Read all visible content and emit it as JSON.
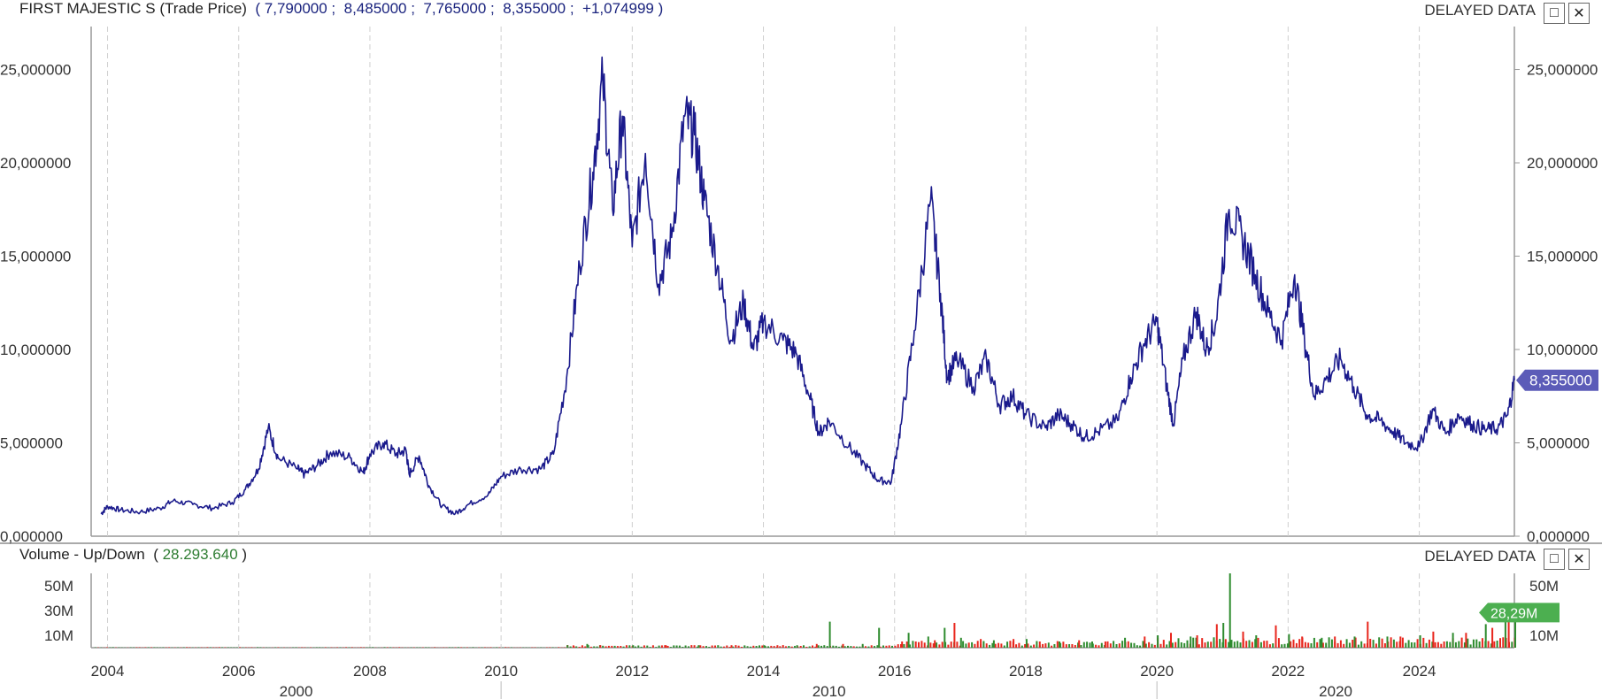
{
  "header": {
    "instrument": "FIRST MAJESTIC S",
    "price_label": "(Trade Price)",
    "ohlc": [
      "7,790000",
      "8,485000",
      "7,765000",
      "8,355000",
      "+1,074999"
    ],
    "delayed": "DELAYED DATA"
  },
  "volume_header": {
    "label": "Volume - Up/Down",
    "value": "28.293.640",
    "delayed": "DELAYED DATA"
  },
  "icons": {
    "maximize": "maximize-icon",
    "close": "close-icon"
  },
  "colors": {
    "price_line": "#1a1a8c",
    "volume_up": "#2e8b2e",
    "volume_down": "#e8261d",
    "last_price_tag": "#5c5cb8",
    "last_volume_tag": "#4caf50",
    "text_dark": "#333333",
    "grid": "#cfcfcf"
  },
  "chart_data": [
    {
      "type": "line",
      "series": [
        {
          "name": "Trade Price",
          "points": [
            [
              2003.9,
              1.2
            ],
            [
              2004.0,
              1.6
            ],
            [
              2004.2,
              1.4
            ],
            [
              2004.5,
              1.3
            ],
            [
              2004.8,
              1.5
            ],
            [
              2005.0,
              1.9
            ],
            [
              2005.3,
              1.7
            ],
            [
              2005.6,
              1.5
            ],
            [
              2005.9,
              1.8
            ],
            [
              2006.1,
              2.5
            ],
            [
              2006.3,
              3.6
            ],
            [
              2006.45,
              5.8
            ],
            [
              2006.6,
              4.2
            ],
            [
              2006.9,
              3.6
            ],
            [
              2007.0,
              3.3
            ],
            [
              2007.2,
              3.8
            ],
            [
              2007.4,
              4.5
            ],
            [
              2007.7,
              4.2
            ],
            [
              2007.9,
              3.4
            ],
            [
              2008.0,
              4.4
            ],
            [
              2008.2,
              5.0
            ],
            [
              2008.4,
              4.4
            ],
            [
              2008.55,
              4.6
            ],
            [
              2008.6,
              3.3
            ],
            [
              2008.75,
              4.3
            ],
            [
              2008.9,
              2.7
            ],
            [
              2009.1,
              1.6
            ],
            [
              2009.3,
              1.2
            ],
            [
              2009.5,
              1.7
            ],
            [
              2009.8,
              2.2
            ],
            [
              2010.0,
              3.2
            ],
            [
              2010.3,
              3.6
            ],
            [
              2010.6,
              3.6
            ],
            [
              2010.8,
              4.4
            ],
            [
              2011.0,
              8.5
            ],
            [
              2011.2,
              14.5
            ],
            [
              2011.4,
              19.5
            ],
            [
              2011.55,
              24.5
            ],
            [
              2011.7,
              17.5
            ],
            [
              2011.85,
              22.5
            ],
            [
              2012.0,
              15.5
            ],
            [
              2012.2,
              20.5
            ],
            [
              2012.4,
              13.5
            ],
            [
              2012.6,
              16.0
            ],
            [
              2012.8,
              22.5
            ],
            [
              2012.95,
              21.5
            ],
            [
              2013.1,
              18.0
            ],
            [
              2013.3,
              14.5
            ],
            [
              2013.5,
              10.5
            ],
            [
              2013.7,
              12.5
            ],
            [
              2013.85,
              10.0
            ],
            [
              2014.0,
              11.5
            ],
            [
              2014.3,
              10.5
            ],
            [
              2014.5,
              9.8
            ],
            [
              2014.7,
              7.5
            ],
            [
              2014.85,
              5.5
            ],
            [
              2015.0,
              6.2
            ],
            [
              2015.3,
              4.8
            ],
            [
              2015.55,
              3.8
            ],
            [
              2015.75,
              3.0
            ],
            [
              2015.95,
              2.9
            ],
            [
              2016.1,
              6.0
            ],
            [
              2016.3,
              11.0
            ],
            [
              2016.55,
              18.0
            ],
            [
              2016.7,
              13.0
            ],
            [
              2016.8,
              8.5
            ],
            [
              2016.95,
              9.5
            ],
            [
              2017.2,
              8.0
            ],
            [
              2017.4,
              9.5
            ],
            [
              2017.6,
              7.0
            ],
            [
              2017.8,
              7.5
            ],
            [
              2018.0,
              6.5
            ],
            [
              2018.3,
              5.8
            ],
            [
              2018.5,
              6.5
            ],
            [
              2018.7,
              6.0
            ],
            [
              2018.9,
              5.3
            ],
            [
              2019.1,
              5.6
            ],
            [
              2019.4,
              6.2
            ],
            [
              2019.6,
              8.5
            ],
            [
              2019.8,
              10.3
            ],
            [
              2020.0,
              11.5
            ],
            [
              2020.15,
              8.0
            ],
            [
              2020.25,
              6.0
            ],
            [
              2020.4,
              9.5
            ],
            [
              2020.6,
              12.0
            ],
            [
              2020.75,
              10.0
            ],
            [
              2020.9,
              11.5
            ],
            [
              2021.1,
              17.5
            ],
            [
              2021.3,
              16.0
            ],
            [
              2021.5,
              14.0
            ],
            [
              2021.7,
              12.0
            ],
            [
              2021.9,
              10.5
            ],
            [
              2022.1,
              14.0
            ],
            [
              2022.25,
              10.5
            ],
            [
              2022.4,
              7.5
            ],
            [
              2022.6,
              8.5
            ],
            [
              2022.8,
              9.5
            ],
            [
              2023.0,
              8.0
            ],
            [
              2023.2,
              6.5
            ],
            [
              2023.4,
              6.2
            ],
            [
              2023.6,
              5.6
            ],
            [
              2023.8,
              5.0
            ],
            [
              2024.0,
              4.8
            ],
            [
              2024.2,
              6.8
            ],
            [
              2024.4,
              5.5
            ],
            [
              2024.6,
              6.5
            ],
            [
              2024.8,
              6.0
            ],
            [
              2025.0,
              5.7
            ],
            [
              2025.2,
              5.8
            ],
            [
              2025.35,
              6.5
            ],
            [
              2025.45,
              8.355
            ]
          ],
          "last_value": "8,355000"
        }
      ],
      "x_ticks_major": [
        "2004",
        "2006",
        "2008",
        "2010",
        "2012",
        "2014",
        "2016",
        "2018",
        "2020",
        "2022",
        "2024"
      ],
      "x_ticks_minor": [
        "2000",
        "2010",
        "2020"
      ],
      "y_ticks": [
        "0,000000",
        "5,000000",
        "10,000000",
        "15,000000",
        "20,000000",
        "25,000000"
      ],
      "ylim": [
        0,
        27.3
      ],
      "xlim": [
        2003.75,
        2025.45
      ],
      "grid": "vertical dashed"
    },
    {
      "type": "bar",
      "title": "Volume - Up/Down",
      "series": [
        {
          "name": "Up",
          "points": [
            [
              2011.0,
              2
            ],
            [
              2011.3,
              3
            ],
            [
              2012.0,
              2
            ],
            [
              2013.0,
              2
            ],
            [
              2014.0,
              2
            ],
            [
              2014.5,
              2
            ],
            [
              2015.0,
              21
            ],
            [
              2015.5,
              3
            ],
            [
              2015.75,
              16
            ],
            [
              2016.2,
              12
            ],
            [
              2016.5,
              9
            ],
            [
              2016.75,
              16
            ],
            [
              2017.0,
              8
            ],
            [
              2017.5,
              6
            ],
            [
              2018.0,
              7
            ],
            [
              2018.5,
              5
            ],
            [
              2019.0,
              5
            ],
            [
              2019.5,
              8
            ],
            [
              2020.0,
              10
            ],
            [
              2020.5,
              9
            ],
            [
              2021.0,
              20
            ],
            [
              2021.1,
              60
            ],
            [
              2021.5,
              10
            ],
            [
              2022.0,
              11
            ],
            [
              2022.5,
              8
            ],
            [
              2023.0,
              9
            ],
            [
              2023.5,
              9
            ],
            [
              2024.0,
              10
            ],
            [
              2024.5,
              12
            ],
            [
              2025.0,
              19
            ],
            [
              2025.3,
              25
            ],
            [
              2025.45,
              28.29
            ]
          ]
        },
        {
          "name": "Down",
          "points": [
            [
              2011.1,
              1
            ],
            [
              2011.5,
              2
            ],
            [
              2012.5,
              2
            ],
            [
              2013.5,
              2
            ],
            [
              2014.2,
              2
            ],
            [
              2014.8,
              3
            ],
            [
              2015.2,
              3
            ],
            [
              2016.1,
              5
            ],
            [
              2016.6,
              6
            ],
            [
              2016.9,
              20
            ],
            [
              2017.3,
              7
            ],
            [
              2017.8,
              7
            ],
            [
              2018.2,
              5
            ],
            [
              2018.8,
              6
            ],
            [
              2019.2,
              5
            ],
            [
              2019.8,
              9
            ],
            [
              2020.2,
              12
            ],
            [
              2020.6,
              10
            ],
            [
              2020.9,
              19
            ],
            [
              2021.3,
              13
            ],
            [
              2021.8,
              18
            ],
            [
              2022.2,
              9
            ],
            [
              2022.7,
              9
            ],
            [
              2023.2,
              21
            ],
            [
              2023.7,
              9
            ],
            [
              2024.2,
              13
            ],
            [
              2024.7,
              12
            ],
            [
              2025.1,
              16
            ],
            [
              2025.35,
              24
            ]
          ]
        }
      ],
      "y_ticks": [
        "10M",
        "30M",
        "50M"
      ],
      "ylim": [
        0,
        60
      ],
      "last_value": "28,29M"
    }
  ]
}
